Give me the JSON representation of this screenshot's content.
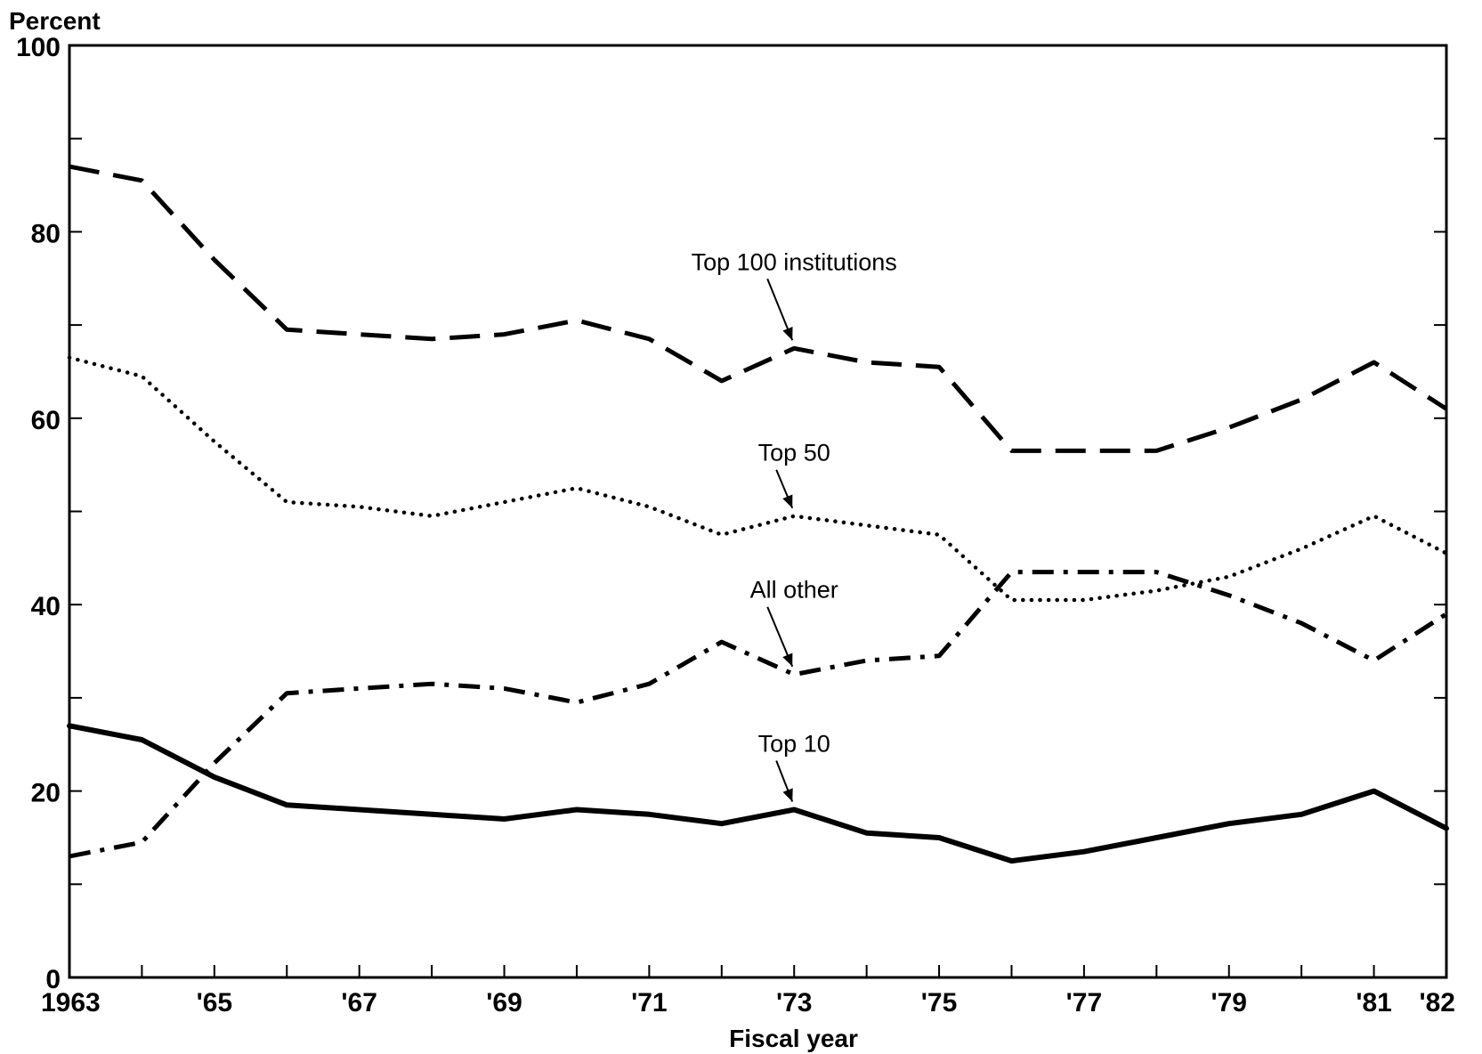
{
  "chart_data": {
    "type": "line",
    "title": "",
    "ylabel": "Percent",
    "xlabel": "Fiscal year",
    "xlim": [
      1963,
      1982
    ],
    "ylim": [
      0,
      100
    ],
    "x_tick_labels": [
      {
        "x": 1963,
        "label": "1963"
      },
      {
        "x": 1965,
        "label": "'65"
      },
      {
        "x": 1967,
        "label": "'67"
      },
      {
        "x": 1969,
        "label": "'69"
      },
      {
        "x": 1971,
        "label": "'71"
      },
      {
        "x": 1973,
        "label": "'73"
      },
      {
        "x": 1975,
        "label": "'75"
      },
      {
        "x": 1977,
        "label": "'77"
      },
      {
        "x": 1979,
        "label": "'79"
      },
      {
        "x": 1981,
        "label": "'81"
      },
      {
        "x": 1982,
        "label": "'82"
      }
    ],
    "y_tick_labels": [
      {
        "y": 0,
        "label": "0"
      },
      {
        "y": 20,
        "label": "20"
      },
      {
        "y": 40,
        "label": "40"
      },
      {
        "y": 60,
        "label": "60"
      },
      {
        "y": 80,
        "label": "80"
      },
      {
        "y": 100,
        "label": "100"
      }
    ],
    "x": [
      1963,
      1964,
      1965,
      1966,
      1967,
      1968,
      1969,
      1970,
      1971,
      1972,
      1973,
      1974,
      1975,
      1976,
      1977,
      1978,
      1979,
      1980,
      1981,
      1982
    ],
    "series": [
      {
        "name": "Top 100 institutions",
        "style": "dashed",
        "values": [
          87,
          85.5,
          77,
          69.5,
          69,
          68.5,
          69,
          70.5,
          68.5,
          64,
          67.5,
          66,
          65.5,
          56.5,
          56.5,
          56.5,
          59,
          62,
          66,
          61
        ],
        "annotation": {
          "label": "Top 100 institutions",
          "x": 1973
        }
      },
      {
        "name": "Top 50",
        "style": "dotted",
        "values": [
          66.5,
          64.5,
          57.5,
          51,
          50.5,
          49.5,
          51,
          52.5,
          50.5,
          47.5,
          49.5,
          48.5,
          47.5,
          40.5,
          40.5,
          41.5,
          43,
          46,
          49.5,
          45.5
        ],
        "annotation": {
          "label": "Top 50",
          "x": 1973
        }
      },
      {
        "name": "All other",
        "style": "dash-dot",
        "values": [
          13,
          14.5,
          23,
          30.5,
          31,
          31.5,
          31,
          29.5,
          31.5,
          36,
          32.5,
          34,
          34.5,
          43.5,
          43.5,
          43.5,
          41,
          38,
          34,
          39
        ],
        "annotation": {
          "label": "All other",
          "x": 1973
        }
      },
      {
        "name": "Top 10",
        "style": "solid",
        "values": [
          27,
          25.5,
          21.5,
          18.5,
          18,
          17.5,
          17,
          18,
          17.5,
          16.5,
          18,
          15.5,
          15,
          12.5,
          13.5,
          15,
          16.5,
          17.5,
          20,
          16
        ],
        "annotation": {
          "label": "Top 10",
          "x": 1973
        }
      }
    ],
    "grid": false,
    "legend": "none"
  }
}
